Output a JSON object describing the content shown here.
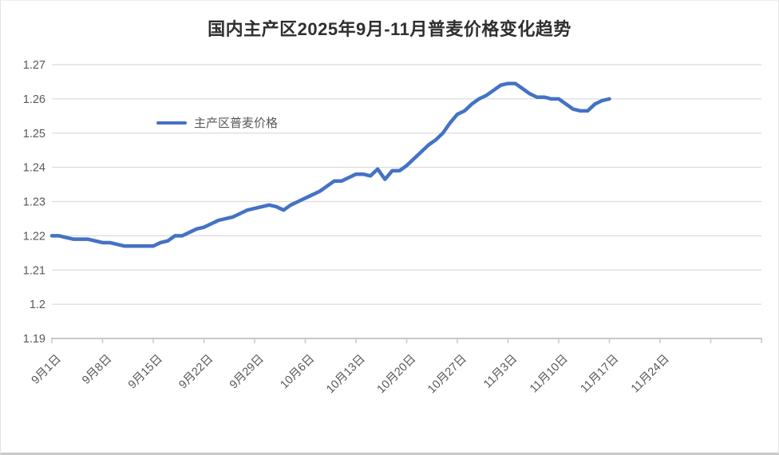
{
  "title": "国内主产区2025年9月-11月普麦价格变化趋势",
  "legend": {
    "label": "主产区普麦价格"
  },
  "colors": {
    "series_line": "#4472C4",
    "gridline": "#dcdcdc",
    "axis_line": "#c8c8c8",
    "tick_label": "#595959",
    "title_text": "#2f2f2f",
    "background": "#ffffff"
  },
  "chart_data": {
    "type": "line",
    "title": "国内主产区2025年9月-11月普麦价格变化趋势",
    "xlabel": "",
    "ylabel": "",
    "ylim": [
      1.19,
      1.27
    ],
    "grid": "horizontal",
    "legend_position": "inside-upper-left",
    "y_tick_labels": [
      "1.19",
      "1.2",
      "1.21",
      "1.22",
      "1.23",
      "1.24",
      "1.25",
      "1.26",
      "1.27"
    ],
    "y_tick_values": [
      1.19,
      1.2,
      1.21,
      1.22,
      1.23,
      1.24,
      1.25,
      1.26,
      1.27
    ],
    "x_tick_labels": [
      "9月1日",
      "9月8日",
      "9月15日",
      "9月22日",
      "9月29日",
      "10月6日",
      "10月13日",
      "10月20日",
      "10月27日",
      "11月3日",
      "11月10日",
      "11月17日",
      "11月24日"
    ],
    "x_axis_extra_unlabeled_ticks": 1,
    "days_per_tick_interval": 7,
    "series": [
      {
        "name": "主产区普麦价格",
        "color": "#4472C4",
        "x": [
          "9月1日",
          "9月2日",
          "9月3日",
          "9月4日",
          "9月5日",
          "9月6日",
          "9月7日",
          "9月8日",
          "9月9日",
          "9月10日",
          "9月11日",
          "9月12日",
          "9月13日",
          "9月14日",
          "9月15日",
          "9月16日",
          "9月17日",
          "9月18日",
          "9月19日",
          "9月20日",
          "9月21日",
          "9月22日",
          "9月23日",
          "9月24日",
          "9月25日",
          "9月26日",
          "9月27日",
          "9月28日",
          "9月29日",
          "9月30日",
          "10月1日",
          "10月2日",
          "10月3日",
          "10月4日",
          "10月5日",
          "10月6日",
          "10月7日",
          "10月8日",
          "10月9日",
          "10月10日",
          "10月11日",
          "10月12日",
          "10月13日",
          "10月14日",
          "10月15日",
          "10月16日",
          "10月17日",
          "10月18日",
          "10月19日",
          "10月20日",
          "10月21日",
          "10月22日",
          "10月23日",
          "10月24日",
          "10月25日",
          "10月26日",
          "10月27日",
          "10月28日",
          "10月29日",
          "10月30日",
          "10月31日",
          "11月1日",
          "11月2日",
          "11月3日",
          "11月4日",
          "11月5日",
          "11月6日",
          "11月7日",
          "11月8日",
          "11月9日",
          "11月10日",
          "11月11日",
          "11月12日",
          "11月13日",
          "11月14日",
          "11月15日",
          "11月16日",
          "11月17日"
        ],
        "values": [
          1.22,
          1.22,
          1.2195,
          1.219,
          1.219,
          1.219,
          1.2185,
          1.218,
          1.218,
          1.2175,
          1.217,
          1.217,
          1.217,
          1.217,
          1.217,
          1.218,
          1.2185,
          1.22,
          1.22,
          1.221,
          1.222,
          1.2225,
          1.2235,
          1.2245,
          1.225,
          1.2255,
          1.2265,
          1.2275,
          1.228,
          1.2285,
          1.229,
          1.2285,
          1.2275,
          1.229,
          1.23,
          1.231,
          1.232,
          1.233,
          1.2345,
          1.236,
          1.236,
          1.237,
          1.238,
          1.238,
          1.2375,
          1.2395,
          1.2365,
          1.239,
          1.239,
          1.2405,
          1.2425,
          1.2445,
          1.2465,
          1.248,
          1.25,
          1.253,
          1.2555,
          1.2565,
          1.2585,
          1.26,
          1.261,
          1.2625,
          1.264,
          1.2645,
          1.2645,
          1.263,
          1.2615,
          1.2605,
          1.2605,
          1.26,
          1.26,
          1.2585,
          1.257,
          1.2565,
          1.2565,
          1.2585,
          1.2595,
          1.26
        ]
      }
    ]
  }
}
